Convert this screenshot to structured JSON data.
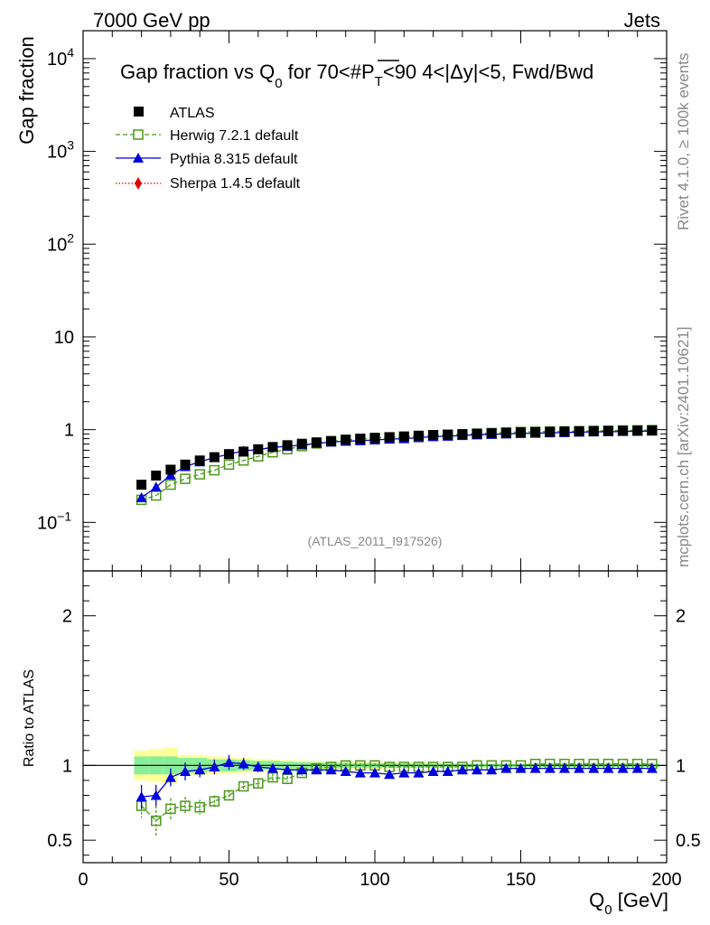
{
  "header": {
    "left": "7000 GeV pp",
    "right": "Jets"
  },
  "side_labels": {
    "rivet": "Rivet 4.1.0, ≥ 100k events",
    "mcplots": "mcplots.cern.ch [arXiv:2401.10621]"
  },
  "chart_data": [
    {
      "type": "scatter",
      "title": "Gap fraction vs Q0 for 70<#PT<90  4<|Δy|<5, Fwd/Bwd",
      "title_parts": {
        "pre": "Gap fraction vs Q",
        "sub": "0",
        "mid": " for 70<#",
        "over": "P",
        "over_sub": "T",
        "post": "<90  4<|Δy|<5, Fwd/Bwd"
      },
      "ylabel": "Gap fraction",
      "yscale": "log",
      "ylim": [
        0.03,
        20000
      ],
      "xlim": [
        0,
        200
      ],
      "y_ticks": [
        {
          "value": 10000,
          "label": "10",
          "exp": "4"
        },
        {
          "value": 1000,
          "label": "10",
          "exp": "3"
        },
        {
          "value": 100,
          "label": "10",
          "exp": "2"
        },
        {
          "value": 10,
          "label": "10",
          "exp": ""
        },
        {
          "value": 1,
          "label": "1",
          "exp": ""
        },
        {
          "value": 0.1,
          "label": "10",
          "exp": "−1"
        }
      ],
      "watermark": "(ATLAS_2011_I917526)",
      "x": [
        20,
        25,
        30,
        35,
        40,
        45,
        50,
        55,
        60,
        65,
        70,
        75,
        80,
        85,
        90,
        95,
        100,
        105,
        110,
        115,
        120,
        125,
        130,
        135,
        140,
        145,
        150,
        155,
        160,
        165,
        170,
        175,
        180,
        185,
        190,
        195
      ],
      "series": [
        {
          "name": "ATLAS",
          "color": "#000000",
          "marker": "square-filled",
          "values": [
            0.255,
            0.32,
            0.37,
            0.42,
            0.465,
            0.505,
            0.545,
            0.58,
            0.615,
            0.65,
            0.68,
            0.705,
            0.73,
            0.755,
            0.78,
            0.8,
            0.815,
            0.83,
            0.845,
            0.86,
            0.875,
            0.885,
            0.895,
            0.905,
            0.915,
            0.925,
            0.935,
            0.94,
            0.948,
            0.955,
            0.96,
            0.965,
            0.97,
            0.975,
            0.978,
            0.982
          ]
        },
        {
          "name": "Herwig 7.2.1 default",
          "color": "#4a9a1a",
          "marker": "square-open",
          "line": "dashed",
          "values": [
            0.175,
            0.195,
            0.255,
            0.295,
            0.33,
            0.365,
            0.42,
            0.465,
            0.515,
            0.57,
            0.615,
            0.665,
            0.71,
            0.745,
            0.775,
            0.79,
            0.815,
            0.825,
            0.835,
            0.855,
            0.87,
            0.88,
            0.89,
            0.905,
            0.92,
            0.935,
            0.945,
            0.95,
            0.955,
            0.96,
            0.965,
            0.97,
            0.975,
            0.98,
            0.985,
            0.99
          ]
        },
        {
          "name": "Pythia 8.315 default",
          "color": "#0000dd",
          "marker": "triangle-filled",
          "line": "solid",
          "values": [
            0.185,
            0.24,
            0.325,
            0.4,
            0.45,
            0.5,
            0.545,
            0.59,
            0.61,
            0.645,
            0.66,
            0.685,
            0.71,
            0.735,
            0.75,
            0.76,
            0.775,
            0.79,
            0.8,
            0.82,
            0.84,
            0.85,
            0.865,
            0.88,
            0.89,
            0.9,
            0.91,
            0.915,
            0.925,
            0.93,
            0.94,
            0.945,
            0.95,
            0.955,
            0.96,
            0.965
          ]
        },
        {
          "name": "Sherpa 1.4.5 default",
          "color": "#dd0000",
          "marker": "diamond-filled",
          "line": "dotted",
          "values": []
        }
      ]
    },
    {
      "type": "scatter",
      "ylabel": "Ratio to ATLAS",
      "xlabel": "Q0 [GeV]",
      "xlabel_parts": {
        "pre": "Q",
        "sub": "0",
        "post": " [GeV]"
      },
      "xlim": [
        0,
        200
      ],
      "ylim": [
        0.35,
        2.3
      ],
      "x_ticks": [
        0,
        50,
        100,
        150,
        200
      ],
      "y_ticks_left": [
        {
          "value": 2,
          "label": "2"
        },
        {
          "value": 1,
          "label": "1"
        },
        {
          "value": 0.5,
          "label": "0.5"
        }
      ],
      "y_ticks_right": [
        {
          "value": 2,
          "label": "2"
        },
        {
          "value": 1,
          "label": "1"
        },
        {
          "value": 0.5,
          "label": "0.5"
        }
      ],
      "x": [
        20,
        25,
        30,
        35,
        40,
        45,
        50,
        55,
        60,
        65,
        70,
        75,
        80,
        85,
        90,
        95,
        100,
        105,
        110,
        115,
        120,
        125,
        130,
        135,
        140,
        145,
        150,
        155,
        160,
        165,
        170,
        175,
        180,
        185,
        190,
        195
      ],
      "band_stat": [
        0.06,
        0.06,
        0.06,
        0.05,
        0.05,
        0.04,
        0.04,
        0.035,
        0.03,
        0.03,
        0.025,
        0.022,
        0.02,
        0.02,
        0.018,
        0.016,
        0.015,
        0.014,
        0.013,
        0.012,
        0.011,
        0.01,
        0.01,
        0.01,
        0.01,
        0.01,
        0.01,
        0.01,
        0.01,
        0.01,
        0.01,
        0.01,
        0.01,
        0.01,
        0.01,
        0.01
      ],
      "band_total": [
        0.1,
        0.11,
        0.12,
        0.07,
        0.07,
        0.06,
        0.055,
        0.05,
        0.045,
        0.04,
        0.035,
        0.032,
        0.03,
        0.028,
        0.026,
        0.024,
        0.022,
        0.02,
        0.018,
        0.017,
        0.016,
        0.015,
        0.014,
        0.013,
        0.013,
        0.012,
        0.012,
        0.012,
        0.012,
        0.012,
        0.012,
        0.012,
        0.012,
        0.012,
        0.012,
        0.012
      ],
      "series": [
        {
          "name": "Herwig 7.2.1 default",
          "color": "#4a9a1a",
          "marker": "square-open",
          "values": [
            0.73,
            0.63,
            0.71,
            0.73,
            0.72,
            0.76,
            0.8,
            0.86,
            0.88,
            0.92,
            0.91,
            0.95,
            0.98,
            0.99,
            1.0,
            1.0,
            1.0,
            0.99,
            0.99,
            0.99,
            0.99,
            0.99,
            0.99,
            1.0,
            1.0,
            1.0,
            1.0,
            1.01,
            1.01,
            1.01,
            1.01,
            1.01,
            1.01,
            1.01,
            1.01,
            1.01
          ],
          "errors": [
            0.08,
            0.1,
            0.07,
            0.06,
            0.05,
            0.04,
            0.035,
            0.03,
            0.025,
            0.025,
            0.02,
            0.02,
            0.018,
            0.016,
            0.015,
            0.015,
            0.014,
            0.013,
            0.013,
            0.012,
            0.012,
            0.012,
            0.011,
            0.011,
            0.011,
            0.011,
            0.01,
            0.01,
            0.01,
            0.01,
            0.01,
            0.01,
            0.01,
            0.01,
            0.01,
            0.01
          ]
        },
        {
          "name": "Pythia 8.315 default",
          "color": "#0000dd",
          "marker": "triangle-filled",
          "values": [
            0.79,
            0.8,
            0.92,
            0.96,
            0.97,
            0.99,
            1.02,
            1.01,
            0.99,
            0.98,
            0.97,
            0.97,
            0.97,
            0.97,
            0.96,
            0.95,
            0.95,
            0.94,
            0.95,
            0.95,
            0.96,
            0.96,
            0.97,
            0.97,
            0.97,
            0.98,
            0.98,
            0.98,
            0.98,
            0.98,
            0.98,
            0.98,
            0.98,
            0.98,
            0.98,
            0.98
          ],
          "errors": [
            0.08,
            0.07,
            0.06,
            0.06,
            0.05,
            0.05,
            0.05,
            0.04,
            0.035,
            0.03,
            0.03,
            0.025,
            0.022,
            0.02,
            0.02,
            0.018,
            0.018,
            0.016,
            0.015,
            0.014,
            0.013,
            0.012,
            0.012,
            0.011,
            0.011,
            0.01,
            0.01,
            0.01,
            0.01,
            0.01,
            0.01,
            0.01,
            0.01,
            0.01,
            0.01,
            0.01
          ]
        }
      ]
    }
  ]
}
